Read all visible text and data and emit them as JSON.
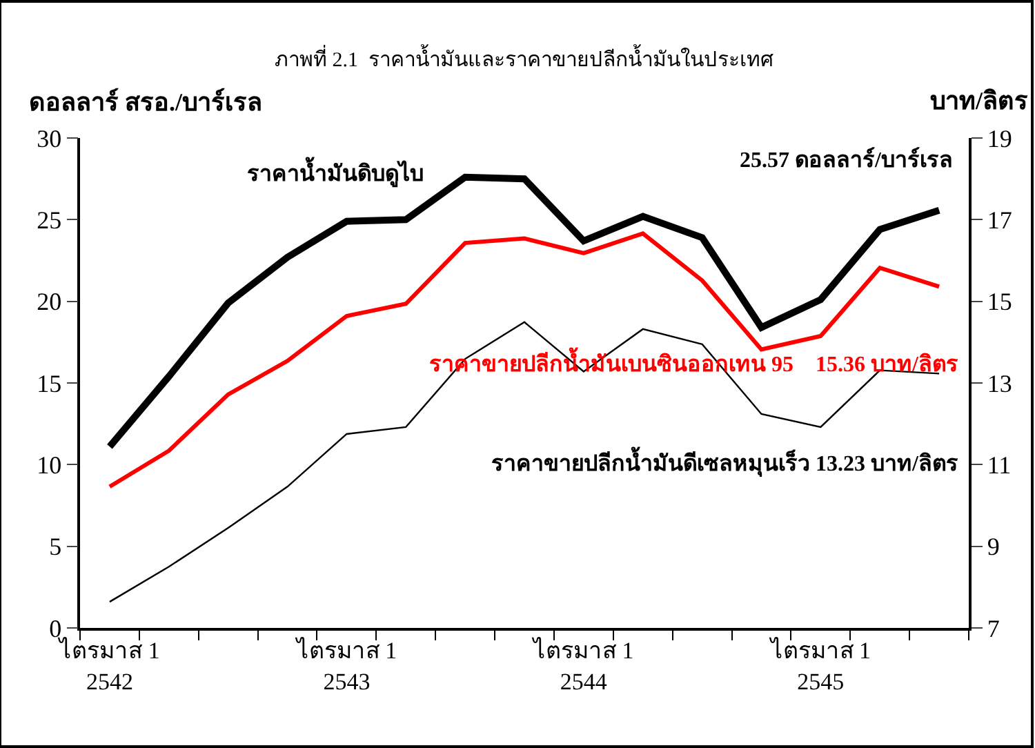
{
  "chart_data": {
    "type": "line",
    "title": "ภาพที่ 2.1  ราคาน้ำมันและราคาขายปลีกน้ำมันในประเทศ",
    "ylabel": "ดอลลาร์ สรอ./บาร์เรล",
    "y2label": "บาท/ลิตร",
    "categories": [
      "ไตรมาส 1\n2542",
      null,
      null,
      null,
      "ไตรมาส 1\n2543",
      null,
      null,
      null,
      "ไตรมาส 1\n2544",
      null,
      null,
      null,
      "ไตรมาส 1\n2545",
      null,
      null
    ],
    "series": [
      {
        "color": "#000000",
        "values": [
          11.1,
          15.4,
          19.9,
          22.7,
          24.9,
          25.0,
          27.6,
          27.5,
          23.7,
          25.2,
          23.9,
          18.4,
          20.1,
          24.4,
          25.57
        ]
      },
      {
        "color": "#ff0000",
        "axis": "y2",
        "values": [
          10.46,
          11.34,
          12.72,
          13.54,
          14.64,
          14.94,
          16.43,
          16.54,
          16.18,
          16.66,
          15.51,
          13.82,
          14.15,
          15.82,
          15.36
        ]
      },
      {
        "color": "#000000",
        "axis": "y2",
        "values": [
          7.64,
          8.5,
          9.45,
          10.46,
          11.75,
          11.92,
          13.59,
          14.49,
          13.28,
          14.32,
          13.95,
          12.24,
          11.92,
          13.31,
          13.23
        ]
      }
    ],
    "ylim": [
      0,
      30
    ],
    "yticks": [
      0,
      5,
      10,
      15,
      20,
      25,
      30
    ],
    "y2lim": [
      7,
      19
    ],
    "y2ticks": [
      7,
      9,
      11,
      13,
      15,
      17,
      19
    ],
    "annotations": [
      "ราคาน้ำมันดิบดูไบ",
      "25.57 ดอลลาร์/บาร์เรล",
      "ราคาขายปลีกน้ำมันเบนซินออกเทน 95    15.36 บาท/ลิตร",
      "ราคาขายปลีกน้ำมันดีเซลหมุนเร็ว 13.23 บาท/ลิตร"
    ],
    "marker": "none",
    "line_style": "solid"
  }
}
